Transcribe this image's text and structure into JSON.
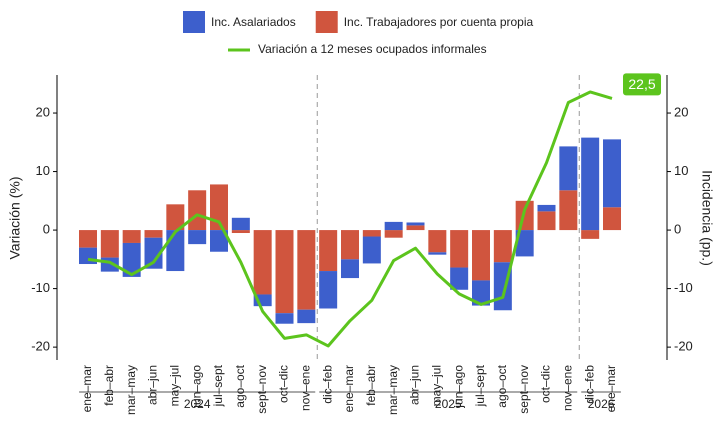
{
  "chart_data": {
    "type": "bar-line",
    "ylabel": "Variación (%)",
    "y2label": "Incidencia (pp.)",
    "categories": [
      "ene–mar",
      "feb–abr",
      "mar–may",
      "abr–jun",
      "may–jul",
      "jun–ago",
      "jul–sept",
      "ago–oct",
      "sept–nov",
      "oct–dic",
      "nov–ene",
      "dic–feb",
      "ene–mar",
      "feb–abr",
      "mar–may",
      "abr–jun",
      "may–jul",
      "jun–ago",
      "jul–sept",
      "ago–oct",
      "sept–nov",
      "oct–dic",
      "nov–ene",
      "dic–feb",
      "ene–mar"
    ],
    "groups": [
      {
        "label": "2024",
        "count": 11
      },
      {
        "label": "2025",
        "count": 12
      },
      {
        "label": "2026",
        "count": 2
      }
    ],
    "series": [
      {
        "name": "Inc. Asalariados",
        "type": "bar",
        "color": "#3d5fcc",
        "values": [
          -2.8,
          -2.4,
          -5.8,
          -5.3,
          -7.0,
          -2.4,
          -3.7,
          2.1,
          -2.0,
          -1.8,
          -2.3,
          -6.4,
          -3.2,
          -4.6,
          1.4,
          0.5,
          -0.4,
          -3.8,
          -4.3,
          -8.2,
          -4.5,
          1.1,
          7.5,
          15.8,
          11.6
        ]
      },
      {
        "name": "Inc. Trabajadores por cuenta propia",
        "type": "bar",
        "color": "#d0553e",
        "values": [
          -3.0,
          -4.7,
          -2.2,
          -1.3,
          4.4,
          6.8,
          7.8,
          -0.5,
          -11.0,
          -14.2,
          -13.6,
          -7.0,
          -5.0,
          -1.1,
          -1.3,
          0.8,
          -3.8,
          -6.4,
          -8.6,
          -5.5,
          5.0,
          3.2,
          6.8,
          -1.5,
          3.9
        ]
      },
      {
        "name": "Variación a 12 meses ocupados informales",
        "type": "line",
        "color": "#5cc41d",
        "values": [
          -5.0,
          -5.5,
          -7.6,
          -5.5,
          -0.3,
          2.6,
          1.4,
          -5.5,
          -13.9,
          -18.5,
          -17.9,
          -19.8,
          -15.5,
          -12.0,
          -5.2,
          -3.1,
          -7.5,
          -10.9,
          -12.7,
          -11.5,
          3.5,
          11.5,
          21.8,
          23.6,
          22.5
        ],
        "value_labels": [
          null,
          null,
          null,
          null,
          null,
          null,
          null,
          null,
          null,
          null,
          null,
          null,
          null,
          null,
          null,
          null,
          null,
          null,
          null,
          null,
          null,
          null,
          null,
          null,
          "22,5"
        ]
      }
    ],
    "ylim": [
      -22.2,
      26.5
    ],
    "yticks": [
      -20,
      -10,
      0,
      10,
      20
    ],
    "y2lim": [
      -22.2,
      26.5
    ],
    "y2ticks": [
      -20,
      -10,
      0,
      10,
      20
    ]
  }
}
